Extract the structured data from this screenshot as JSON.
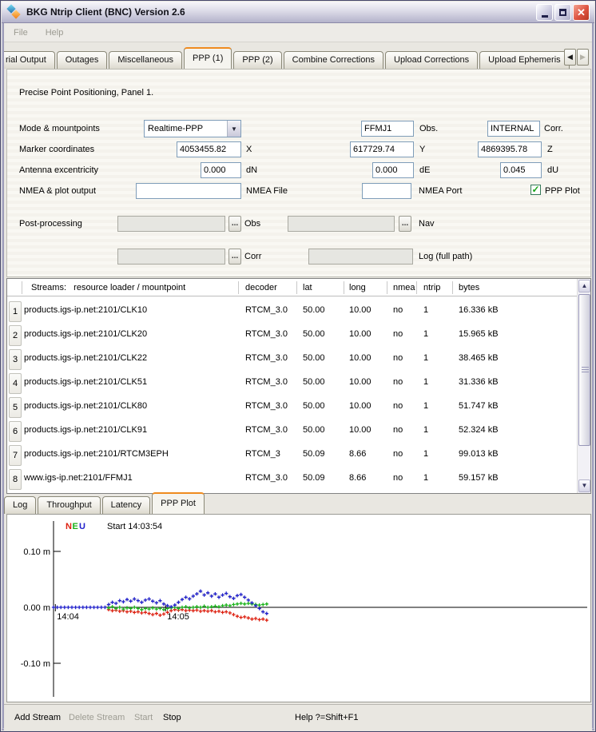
{
  "window": {
    "title": "BKG Ntrip Client (BNC) Version 2.6",
    "controls": [
      "minimize",
      "maximize",
      "close"
    ]
  },
  "menu": {
    "items": [
      {
        "label": "File",
        "enabled": false
      },
      {
        "label": "Help",
        "enabled": false
      }
    ]
  },
  "top_tabs": {
    "items": [
      {
        "label": "rial Output",
        "cut": true
      },
      {
        "label": "Outages"
      },
      {
        "label": "Miscellaneous"
      },
      {
        "label": "PPP (1)",
        "selected": true
      },
      {
        "label": "PPP (2)"
      },
      {
        "label": "Combine Corrections"
      },
      {
        "label": "Upload Corrections"
      },
      {
        "label": "Upload Ephemeris"
      }
    ],
    "scroll_left_enabled": true,
    "scroll_right_enabled": false
  },
  "panel": {
    "heading": "Precise Point Positioning, Panel 1.",
    "mode": {
      "label": "Mode & mountpoints",
      "combo_value": "Realtime-PPP",
      "obs_value": "FFMJ1",
      "obs_label": "Obs.",
      "corr_value": "INTERNAL",
      "corr_label": "Corr."
    },
    "marker": {
      "label": "Marker coordinates",
      "x_value": "4053455.82",
      "x_label": "X",
      "y_value": "617729.74",
      "y_label": "Y",
      "z_value": "4869395.78",
      "z_label": "Z"
    },
    "antenna": {
      "label": "Antenna excentricity",
      "dn_value": "0.000",
      "dn_label": "dN",
      "de_value": "0.000",
      "de_label": "dE",
      "du_value": "0.045",
      "du_label": "dU"
    },
    "nmea": {
      "label": "NMEA & plot output",
      "file_value": "",
      "file_label": "NMEA File",
      "port_value": "",
      "port_label": "NMEA Port",
      "plot_label": "PPP Plot",
      "plot_checked": true,
      "check_glyph": "✓"
    },
    "post": {
      "label": "Post-processing",
      "browse_label": "...",
      "obs_label": "Obs",
      "nav_label": "Nav",
      "corr_label": "Corr",
      "log_label": "Log (full path)"
    }
  },
  "streams": {
    "header": {
      "col0": "Streams:   resource loader / mountpoint",
      "decoder": "decoder",
      "lat": "lat",
      "long": "long",
      "nmea": "nmea",
      "ntrip": "ntrip",
      "bytes": "bytes"
    },
    "rows": [
      {
        "num": "1",
        "mountpoint": "products.igs-ip.net:2101/CLK10",
        "decoder": "RTCM_3.0",
        "lat": "50.00",
        "long": "10.00",
        "nmea": "no",
        "ntrip": "1",
        "bytes": "16.336 kB"
      },
      {
        "num": "2",
        "mountpoint": "products.igs-ip.net:2101/CLK20",
        "decoder": "RTCM_3.0",
        "lat": "50.00",
        "long": "10.00",
        "nmea": "no",
        "ntrip": "1",
        "bytes": "15.965 kB"
      },
      {
        "num": "3",
        "mountpoint": "products.igs-ip.net:2101/CLK22",
        "decoder": "RTCM_3.0",
        "lat": "50.00",
        "long": "10.00",
        "nmea": "no",
        "ntrip": "1",
        "bytes": "38.465 kB"
      },
      {
        "num": "4",
        "mountpoint": "products.igs-ip.net:2101/CLK51",
        "decoder": "RTCM_3.0",
        "lat": "50.00",
        "long": "10.00",
        "nmea": "no",
        "ntrip": "1",
        "bytes": "31.336 kB"
      },
      {
        "num": "5",
        "mountpoint": "products.igs-ip.net:2101/CLK80",
        "decoder": "RTCM_3.0",
        "lat": "50.00",
        "long": "10.00",
        "nmea": "no",
        "ntrip": "1",
        "bytes": "51.747 kB"
      },
      {
        "num": "6",
        "mountpoint": "products.igs-ip.net:2101/CLK91",
        "decoder": "RTCM_3.0",
        "lat": "50.00",
        "long": "10.00",
        "nmea": "no",
        "ntrip": "1",
        "bytes": "52.324 kB"
      },
      {
        "num": "7",
        "mountpoint": "products.igs-ip.net:2101/RTCM3EPH",
        "decoder": "RTCM_3",
        "lat": "50.09",
        "long": "8.66",
        "nmea": "no",
        "ntrip": "1",
        "bytes": "99.013 kB"
      },
      {
        "num": "8",
        "mountpoint": "www.igs-ip.net:2101/FFMJ1",
        "decoder": "RTCM_3.0",
        "lat": "50.09",
        "long": "8.66",
        "nmea": "no",
        "ntrip": "1",
        "bytes": "59.157 kB"
      }
    ]
  },
  "bottom_tabs": {
    "items": [
      {
        "label": "Log"
      },
      {
        "label": "Throughput"
      },
      {
        "label": "Latency"
      },
      {
        "label": "PPP Plot",
        "selected": true
      }
    ]
  },
  "chart_data": {
    "type": "scatter",
    "title": "PPP displacement plot (N/E/U components)",
    "start_label": "Start 14:03:54",
    "legend": [
      {
        "label": "N",
        "color": "#dd2010"
      },
      {
        "label": "E",
        "color": "#19b219"
      },
      {
        "label": "U",
        "color": "#2121cc"
      }
    ],
    "ylabel": "m",
    "ylim": [
      -0.16,
      0.16
    ],
    "y_ticks": [
      {
        "label": "0.10 m",
        "value": 0.1
      },
      {
        "label": "0.00 m",
        "value": 0.0
      },
      {
        "label": "-0.10 m",
        "value": -0.1
      }
    ],
    "x_unit": "seconds after 14:04:00",
    "x_ticks": [
      {
        "label": "14:04",
        "t": 0
      },
      {
        "label": "14:05",
        "t": 60
      }
    ],
    "series": [
      {
        "name": "N",
        "color": "#dd2010",
        "points": [
          [
            29,
            -0.004
          ],
          [
            31,
            -0.006
          ],
          [
            33,
            -0.005
          ],
          [
            35,
            -0.007
          ],
          [
            37,
            -0.006
          ],
          [
            39,
            -0.008
          ],
          [
            41,
            -0.007
          ],
          [
            43,
            -0.009
          ],
          [
            45,
            -0.008
          ],
          [
            47,
            -0.01
          ],
          [
            49,
            -0.009
          ],
          [
            51,
            -0.011
          ],
          [
            53,
            -0.013
          ],
          [
            55,
            -0.011
          ],
          [
            57,
            -0.014
          ],
          [
            59,
            -0.012
          ],
          [
            61,
            -0.009
          ],
          [
            63,
            -0.006
          ],
          [
            65,
            -0.004
          ],
          [
            67,
            -0.005
          ],
          [
            69,
            -0.004
          ],
          [
            71,
            -0.006
          ],
          [
            73,
            -0.005
          ],
          [
            75,
            -0.006
          ],
          [
            77,
            -0.005
          ],
          [
            79,
            -0.007
          ],
          [
            81,
            -0.006
          ],
          [
            83,
            -0.007
          ],
          [
            85,
            -0.006
          ],
          [
            87,
            -0.008
          ],
          [
            89,
            -0.007
          ],
          [
            91,
            -0.009
          ],
          [
            93,
            -0.008
          ],
          [
            95,
            -0.01
          ],
          [
            97,
            -0.013
          ],
          [
            99,
            -0.016
          ],
          [
            101,
            -0.018
          ],
          [
            103,
            -0.017
          ],
          [
            105,
            -0.019
          ],
          [
            107,
            -0.021
          ],
          [
            109,
            -0.02
          ],
          [
            111,
            -0.022
          ],
          [
            113,
            -0.021
          ],
          [
            115,
            -0.023
          ]
        ]
      },
      {
        "name": "E",
        "color": "#19b219",
        "points": [
          [
            29,
            -0.001
          ],
          [
            31,
            0.001
          ],
          [
            33,
            -0.002
          ],
          [
            35,
            0.0
          ],
          [
            37,
            -0.003
          ],
          [
            39,
            -0.001
          ],
          [
            41,
            -0.002
          ],
          [
            43,
            0.0
          ],
          [
            45,
            -0.002
          ],
          [
            47,
            -0.004
          ],
          [
            49,
            -0.002
          ],
          [
            51,
            -0.003
          ],
          [
            53,
            -0.001
          ],
          [
            55,
            -0.003
          ],
          [
            57,
            -0.002
          ],
          [
            59,
            -0.004
          ],
          [
            61,
            -0.002
          ],
          [
            63,
            -0.001
          ],
          [
            65,
            0.0
          ],
          [
            67,
            -0.002
          ],
          [
            69,
            0.0
          ],
          [
            71,
            0.001
          ],
          [
            73,
            -0.001
          ],
          [
            75,
            0.0
          ],
          [
            77,
            0.001
          ],
          [
            79,
            0.0
          ],
          [
            81,
            0.002
          ],
          [
            83,
            0.0
          ],
          [
            85,
            0.001
          ],
          [
            87,
            0.002
          ],
          [
            89,
            0.001
          ],
          [
            91,
            0.003
          ],
          [
            93,
            0.004
          ],
          [
            95,
            0.003
          ],
          [
            97,
            0.005
          ],
          [
            99,
            0.006
          ],
          [
            101,
            0.007
          ],
          [
            103,
            0.006
          ],
          [
            105,
            0.007
          ],
          [
            107,
            0.006
          ],
          [
            109,
            0.005
          ],
          [
            111,
            0.004
          ],
          [
            113,
            0.005
          ],
          [
            115,
            0.006
          ]
        ]
      },
      {
        "name": "U",
        "color": "#2121cc",
        "points": [
          [
            -1,
            0
          ],
          [
            1,
            0
          ],
          [
            3,
            0
          ],
          [
            5,
            0
          ],
          [
            7,
            0
          ],
          [
            9,
            0
          ],
          [
            11,
            0
          ],
          [
            13,
            0
          ],
          [
            15,
            0
          ],
          [
            17,
            0
          ],
          [
            19,
            0
          ],
          [
            21,
            0
          ],
          [
            23,
            0
          ],
          [
            25,
            0
          ],
          [
            27,
            0
          ],
          [
            29,
            0.005
          ],
          [
            31,
            0.009
          ],
          [
            33,
            0.007
          ],
          [
            35,
            0.012
          ],
          [
            37,
            0.01
          ],
          [
            39,
            0.014
          ],
          [
            41,
            0.011
          ],
          [
            43,
            0.015
          ],
          [
            45,
            0.012
          ],
          [
            47,
            0.009
          ],
          [
            49,
            0.013
          ],
          [
            51,
            0.015
          ],
          [
            53,
            0.011
          ],
          [
            55,
            0.008
          ],
          [
            57,
            0.012
          ],
          [
            59,
            0.006
          ],
          [
            61,
            0.003
          ],
          [
            63,
            0.001
          ],
          [
            65,
            0.004
          ],
          [
            67,
            0.009
          ],
          [
            69,
            0.014
          ],
          [
            71,
            0.018
          ],
          [
            73,
            0.015
          ],
          [
            75,
            0.02
          ],
          [
            77,
            0.024
          ],
          [
            79,
            0.029
          ],
          [
            81,
            0.022
          ],
          [
            83,
            0.026
          ],
          [
            85,
            0.02
          ],
          [
            87,
            0.024
          ],
          [
            89,
            0.018
          ],
          [
            91,
            0.022
          ],
          [
            93,
            0.025
          ],
          [
            95,
            0.019
          ],
          [
            97,
            0.016
          ],
          [
            99,
            0.021
          ],
          [
            101,
            0.023
          ],
          [
            103,
            0.018
          ],
          [
            105,
            0.013
          ],
          [
            107,
            0.008
          ],
          [
            109,
            0.003
          ],
          [
            111,
            -0.002
          ],
          [
            113,
            -0.008
          ],
          [
            115,
            -0.011
          ]
        ]
      }
    ]
  },
  "status_bar": {
    "items": [
      {
        "label": "Add Stream",
        "enabled": true,
        "x": 13
      },
      {
        "label": "Delete Stream",
        "enabled": false,
        "x": 81
      },
      {
        "label": "Start",
        "enabled": false,
        "x": 163
      },
      {
        "label": "Stop",
        "enabled": true,
        "x": 199
      },
      {
        "label": "Help ?=Shift+F1",
        "enabled": true,
        "x": 364
      }
    ]
  }
}
